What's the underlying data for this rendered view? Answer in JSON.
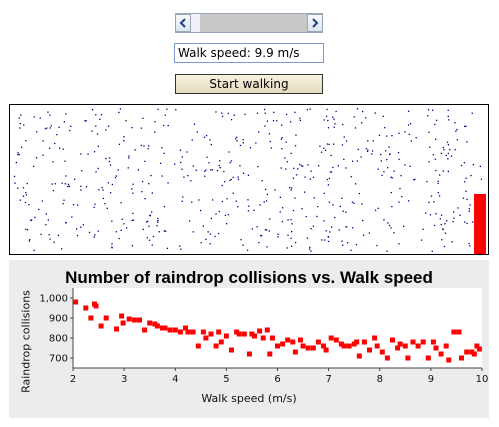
{
  "controls": {
    "speed_field_text": "Walk speed: 9.9 m/s",
    "start_label": "Start walking",
    "slider_value": 9.9,
    "slider_min": 0,
    "slider_max": 10
  },
  "collision_level": 0.4,
  "icons": {
    "left": "chevron-left-icon",
    "right": "chevron-right-icon"
  },
  "colors": {
    "accent": "#ff0000",
    "raindrop": "#00007f"
  },
  "chart_data": {
    "type": "scatter",
    "title": "Number of raindrop collisions vs. Walk speed",
    "xlabel": "Walk speed (m/s)",
    "ylabel": "Raindrop collisions",
    "xlim": [
      2,
      10
    ],
    "ylim": [
      650,
      1050
    ],
    "xticks": [
      "2",
      "3",
      "4",
      "5",
      "6",
      "7",
      "8",
      "9",
      "10"
    ],
    "yticks": [
      "700",
      "800",
      "900",
      "1,000"
    ],
    "grid": false,
    "x": [
      2.05,
      2.25,
      2.35,
      2.42,
      2.45,
      2.55,
      2.65,
      2.85,
      2.95,
      2.98,
      3.1,
      3.2,
      3.3,
      3.4,
      3.5,
      3.6,
      3.65,
      3.75,
      3.8,
      3.9,
      4.0,
      4.1,
      4.2,
      4.25,
      4.35,
      4.45,
      4.55,
      4.6,
      4.7,
      4.8,
      4.85,
      4.9,
      5.0,
      5.1,
      5.2,
      5.25,
      5.35,
      5.45,
      5.5,
      5.55,
      5.65,
      5.72,
      5.8,
      5.85,
      5.9,
      6.0,
      6.1,
      6.2,
      6.3,
      6.35,
      6.45,
      6.5,
      6.6,
      6.7,
      6.8,
      6.9,
      6.95,
      7.05,
      7.15,
      7.25,
      7.3,
      7.4,
      7.5,
      7.55,
      7.6,
      7.7,
      7.8,
      7.9,
      7.95,
      8.05,
      8.15,
      8.25,
      8.35,
      8.4,
      8.5,
      8.55,
      8.65,
      8.75,
      8.85,
      8.95,
      9.05,
      9.1,
      9.2,
      9.3,
      9.35,
      9.45,
      9.55,
      9.6,
      9.7,
      9.8,
      9.85,
      9.9,
      9.95
    ],
    "y": [
      980,
      950,
      900,
      970,
      960,
      860,
      900,
      845,
      910,
      875,
      895,
      890,
      890,
      840,
      875,
      870,
      860,
      850,
      850,
      840,
      840,
      830,
      850,
      830,
      830,
      760,
      830,
      800,
      820,
      760,
      830,
      780,
      810,
      740,
      830,
      820,
      820,
      720,
      820,
      810,
      835,
      800,
      840,
      720,
      800,
      760,
      770,
      790,
      780,
      730,
      790,
      760,
      750,
      750,
      780,
      760,
      740,
      800,
      790,
      770,
      760,
      760,
      770,
      780,
      710,
      780,
      740,
      800,
      760,
      730,
      700,
      790,
      750,
      770,
      760,
      700,
      780,
      760,
      780,
      700,
      780,
      750,
      720,
      760,
      690,
      830,
      830,
      700,
      730,
      730,
      720,
      760,
      745
    ]
  }
}
